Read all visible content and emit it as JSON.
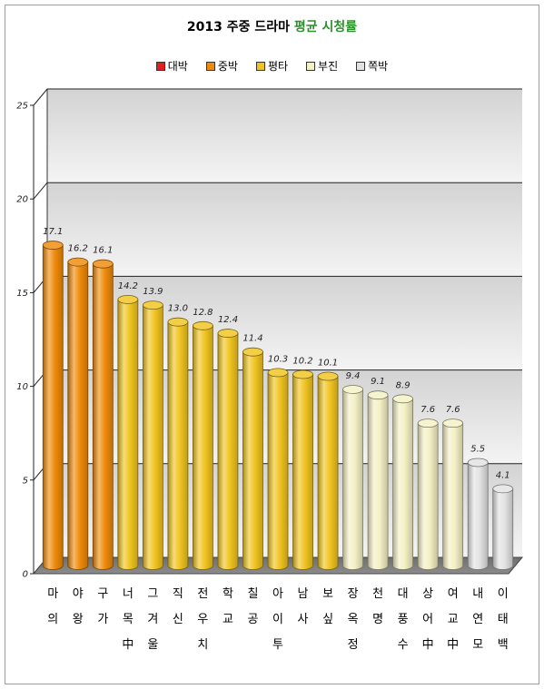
{
  "chart_data": {
    "type": "bar",
    "title": "2013 주중 드라마",
    "title_highlight": "평균 시청률",
    "title_highlight_color": "#2f8f2f",
    "categories": [
      "마의",
      "야왕",
      "구가",
      "너목中",
      "그겨울",
      "직신",
      "전우치",
      "학교",
      "칠공",
      "아이투",
      "남사",
      "보싶",
      "장옥정",
      "천명",
      "대풍수",
      "상어中",
      "여교中",
      "내연모",
      "이태백"
    ],
    "values": [
      17.1,
      16.2,
      16.1,
      14.2,
      13.9,
      13.0,
      12.8,
      12.4,
      11.4,
      10.3,
      10.2,
      10.1,
      9.4,
      9.1,
      8.9,
      7.6,
      7.6,
      5.5,
      4.1
    ],
    "data_labels": [
      "17.1",
      "16.2",
      "16.1",
      "14.2",
      "13.9",
      "13.0",
      "12.8",
      "12.4",
      "11.4",
      "10.3",
      "10.2",
      "10.1",
      "9.4",
      "9.1",
      "8.9",
      "7.6",
      "7.6",
      "5.5",
      "4.1"
    ],
    "legend_group": [
      1,
      1,
      1,
      2,
      2,
      2,
      2,
      2,
      2,
      2,
      2,
      2,
      3,
      3,
      3,
      3,
      3,
      4,
      4
    ],
    "legend": [
      {
        "name": "대박",
        "color": "#e0201c"
      },
      {
        "name": "중박",
        "color": "#ef8a0a"
      },
      {
        "name": "평타",
        "color": "#f0c420"
      },
      {
        "name": "부진",
        "color": "#f4f0c4"
      },
      {
        "name": "쪽박",
        "color": "#e2e2e2"
      }
    ],
    "legend_position": "top",
    "ylim": [
      0,
      25
    ],
    "y_ticks": [
      0,
      5,
      10,
      15,
      20,
      25
    ],
    "grid": true
  }
}
